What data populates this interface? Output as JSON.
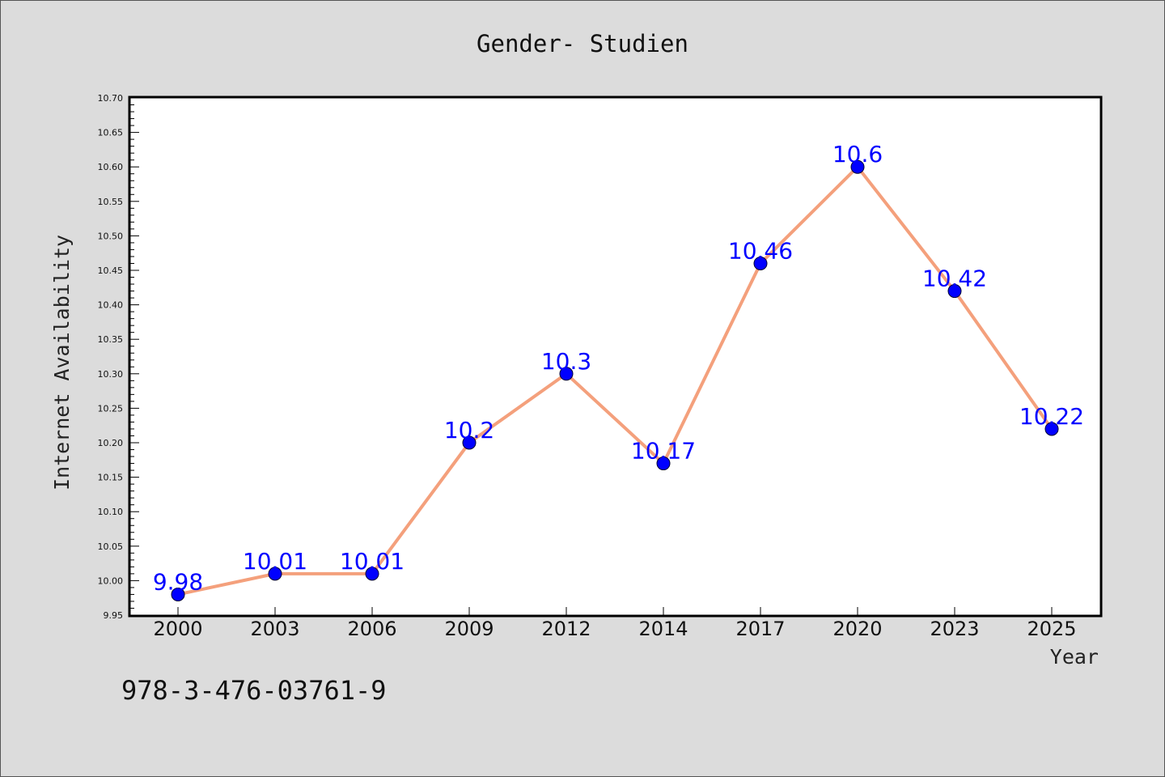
{
  "chart_data": {
    "type": "line",
    "title": "Gender- Studien",
    "xlabel": "Year",
    "ylabel": "Internet Availability",
    "categories": [
      "2000",
      "2003",
      "2006",
      "2009",
      "2012",
      "2014",
      "2017",
      "2020",
      "2023",
      "2025"
    ],
    "series": [
      {
        "values": [
          9.98,
          10.01,
          10.01,
          10.2,
          10.3,
          10.17,
          10.46,
          10.6,
          10.42,
          10.22
        ],
        "labels": [
          "9.98",
          "10.01",
          "10.01",
          "10.2",
          "10.3",
          "10.17",
          "10.46",
          "10.6",
          "10.42",
          "10.22"
        ],
        "line_color": "#f4a07c",
        "marker_color": "#0000ff"
      }
    ],
    "ylim": [
      9.95,
      10.7
    ],
    "yticks": [
      "9.95",
      "10.00",
      "10.05",
      "10.10",
      "10.15",
      "10.20",
      "10.25",
      "10.30",
      "10.35",
      "10.40",
      "10.45",
      "10.50",
      "10.55",
      "10.60",
      "10.65",
      "10.70"
    ],
    "grid": false,
    "legend": "none"
  },
  "footer": {
    "isbn": "978-3-476-03761-9"
  },
  "colors": {
    "background": "#dcdcdc",
    "plot_background": "#ffffff"
  }
}
